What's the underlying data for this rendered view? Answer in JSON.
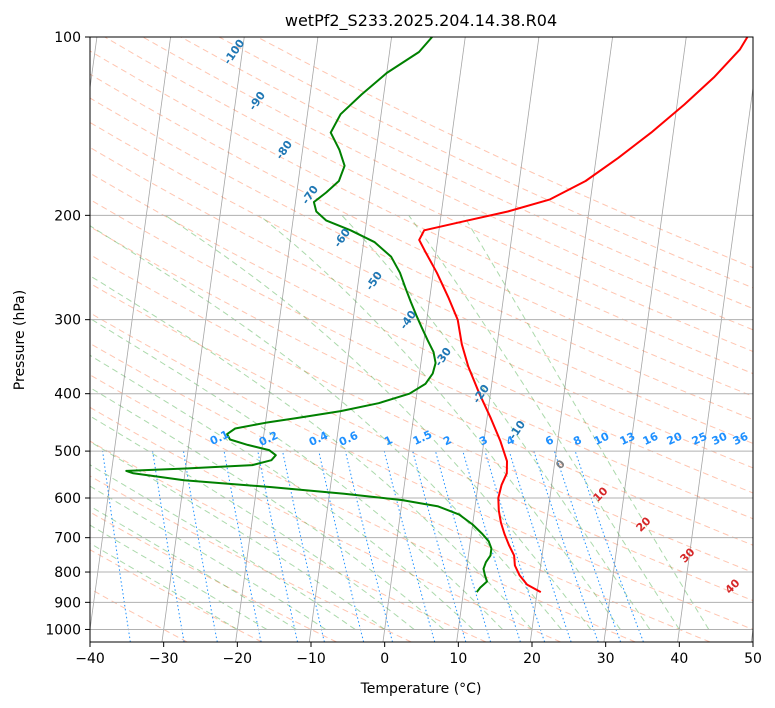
{
  "chart_data": {
    "type": "line",
    "title": "wetPf2_S233.2025.204.14.38.R04",
    "xlabel": "Temperature (°C)",
    "ylabel": "Pressure (hPa)",
    "xlim": [
      -40,
      50
    ],
    "ylim": [
      1050,
      100
    ],
    "y_scale": "log",
    "x_ticks": [
      "−40",
      "−30",
      "−20",
      "−10",
      "0",
      "10",
      "20",
      "30",
      "40",
      "50"
    ],
    "y_ticks": [
      "1000",
      "900",
      "800",
      "700",
      "600",
      "500",
      "400",
      "300",
      "200",
      "100"
    ],
    "grid": true,
    "series": [
      {
        "color": "#ff0000",
        "points": [
          [
            20.5,
            865
          ],
          [
            18.5,
            840
          ],
          [
            17.3,
            810
          ],
          [
            16.5,
            780
          ],
          [
            16.2,
            750
          ],
          [
            15.3,
            720
          ],
          [
            14.5,
            690
          ],
          [
            13.8,
            660
          ],
          [
            13.3,
            630
          ],
          [
            13.0,
            600
          ],
          [
            13.2,
            570
          ],
          [
            13.7,
            545
          ],
          [
            13.5,
            520
          ],
          [
            12.2,
            480
          ],
          [
            10.5,
            440
          ],
          [
            8.5,
            400
          ],
          [
            6.5,
            360
          ],
          [
            5.2,
            330
          ],
          [
            4.2,
            300
          ],
          [
            2.5,
            275
          ],
          [
            0.5,
            250
          ],
          [
            -1.5,
            230
          ],
          [
            -2.5,
            220
          ],
          [
            -2.0,
            212
          ],
          [
            3.0,
            205
          ],
          [
            9.0,
            197
          ],
          [
            14.5,
            188
          ],
          [
            19.0,
            175
          ],
          [
            23.0,
            160
          ],
          [
            27.0,
            145
          ],
          [
            31.0,
            130
          ],
          [
            34.5,
            117
          ],
          [
            37.5,
            105
          ],
          [
            38.3,
            100
          ]
        ]
      },
      {
        "color": "#008000",
        "points": [
          [
            11.8,
            865
          ],
          [
            12.2,
            850
          ],
          [
            13.0,
            830
          ],
          [
            12.6,
            810
          ],
          [
            12.3,
            790
          ],
          [
            12.5,
            770
          ],
          [
            13.0,
            750
          ],
          [
            13.0,
            730
          ],
          [
            12.5,
            710
          ],
          [
            11.5,
            690
          ],
          [
            10.0,
            665
          ],
          [
            8.0,
            640
          ],
          [
            5.0,
            620
          ],
          [
            0.0,
            605
          ],
          [
            -8.0,
            590
          ],
          [
            -18.0,
            575
          ],
          [
            -30.0,
            560
          ],
          [
            -37.0,
            545
          ],
          [
            -38.0,
            540
          ],
          [
            -30.0,
            535
          ],
          [
            -21.0,
            528
          ],
          [
            -18.5,
            518
          ],
          [
            -18.0,
            508
          ],
          [
            -19.0,
            498
          ],
          [
            -22.0,
            488
          ],
          [
            -24.5,
            478
          ],
          [
            -25.0,
            468
          ],
          [
            -24.0,
            458
          ],
          [
            -20.0,
            448
          ],
          [
            -16.0,
            440
          ],
          [
            -10.0,
            428
          ],
          [
            -5.0,
            415
          ],
          [
            -1.0,
            400
          ],
          [
            1.0,
            385
          ],
          [
            1.8,
            370
          ],
          [
            2.0,
            355
          ],
          [
            1.5,
            340
          ],
          [
            0.5,
            325
          ],
          [
            -0.5,
            310
          ],
          [
            -1.5,
            295
          ],
          [
            -2.5,
            280
          ],
          [
            -3.5,
            265
          ],
          [
            -4.5,
            250
          ],
          [
            -6.0,
            235
          ],
          [
            -8.5,
            222
          ],
          [
            -12.0,
            212
          ],
          [
            -15.5,
            204
          ],
          [
            -17.0,
            197
          ],
          [
            -17.5,
            190
          ],
          [
            -16.0,
            183
          ],
          [
            -14.5,
            175
          ],
          [
            -14.0,
            165
          ],
          [
            -15.0,
            155
          ],
          [
            -16.5,
            145
          ],
          [
            -15.5,
            135
          ],
          [
            -13.0,
            125
          ],
          [
            -10.0,
            115
          ],
          [
            -6.0,
            106
          ],
          [
            -4.5,
            100
          ]
        ]
      }
    ],
    "background_lines": {
      "isotherms": {
        "color": "#808080"
      },
      "dry_adiabats": {
        "color": "#ff7f50"
      },
      "moist_adiabats": {
        "color": "#2ca02c"
      },
      "mixing_ratio_lines": {
        "color": "#1e90ff"
      }
    },
    "annotations": {
      "blue_labels": [
        "-100",
        "-90",
        "-80",
        "-70",
        "-60",
        "-50",
        "-40",
        "-30",
        "-20",
        "-10"
      ],
      "mixing_ratio_labels": [
        "0.1",
        "0.2",
        "0.4",
        "0.6",
        "1",
        "1.5",
        "2",
        "3",
        "4",
        "6",
        "8",
        "10",
        "13",
        "16",
        "20",
        "25",
        "30",
        "36"
      ],
      "red_labels": [
        "10",
        "20",
        "30",
        "40"
      ],
      "gray_labels": [
        "0"
      ]
    }
  }
}
